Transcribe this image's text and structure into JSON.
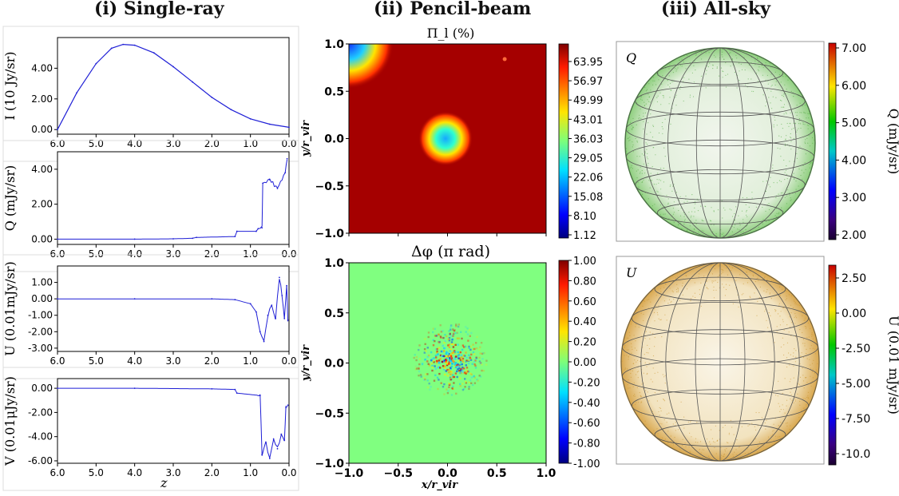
{
  "columns": {
    "single_ray": "(i) Single-ray",
    "pencil_beam": "(ii) Pencil-beam",
    "all_sky": "(iii) All-sky"
  },
  "colors": {
    "line": "#1f1fd6",
    "bg": "#ffffff",
    "axis": "#000000"
  },
  "chart_data": [
    {
      "type": "line",
      "panel": "single-ray-I",
      "ylabel": "I (10 Jy/sr)",
      "xlabel": "",
      "xlim": [
        6.0,
        0.0
      ],
      "ylim": [
        -0.3,
        6.0
      ],
      "xticks": [
        "6.0",
        "5.0",
        "4.0",
        "3.0",
        "2.0",
        "1.0",
        "0.0"
      ],
      "yticks": [
        "0.00",
        "2.00",
        "4.00"
      ],
      "x": [
        6.0,
        5.5,
        5.0,
        4.6,
        4.3,
        4.0,
        3.5,
        3.0,
        2.5,
        2.0,
        1.5,
        1.0,
        0.5,
        0.0
      ],
      "y": [
        0.0,
        2.4,
        4.3,
        5.3,
        5.55,
        5.5,
        5.0,
        4.1,
        3.1,
        2.1,
        1.3,
        0.7,
        0.35,
        0.15
      ]
    },
    {
      "type": "line",
      "panel": "single-ray-Q",
      "ylabel": "Q (mJy/sr)",
      "xlabel": "",
      "xlim": [
        6.0,
        0.0
      ],
      "ylim": [
        -0.3,
        5.0
      ],
      "xticks": [
        "6.0",
        "5.0",
        "4.0",
        "3.0",
        "2.0",
        "1.0",
        "0.0"
      ],
      "yticks": [
        "0.00",
        "2.00",
        "4.00"
      ],
      "x": [
        6.0,
        4.0,
        3.0,
        2.5,
        2.4,
        1.4,
        1.35,
        0.85,
        0.8,
        0.7,
        0.68,
        0.5,
        0.3,
        0.1,
        0.05
      ],
      "y": [
        0.0,
        0.0,
        0.02,
        0.05,
        0.1,
        0.15,
        0.45,
        0.45,
        0.6,
        0.65,
        3.2,
        3.4,
        2.9,
        3.8,
        4.6
      ]
    },
    {
      "type": "line",
      "panel": "single-ray-U",
      "ylabel": "U (0.01mJy/sr)",
      "xlabel": "",
      "xlim": [
        6.0,
        0.0
      ],
      "ylim": [
        -3.2,
        2.0
      ],
      "xticks": [
        "6.0",
        "5.0",
        "4.0",
        "3.0",
        "2.0",
        "1.0",
        "0.0"
      ],
      "yticks": [
        "1.00",
        "0.00",
        "-1.00",
        "-2.00",
        "-3.00"
      ],
      "x": [
        6.0,
        4.0,
        2.0,
        1.4,
        1.0,
        0.85,
        0.75,
        0.65,
        0.55,
        0.45,
        0.35,
        0.25,
        0.18,
        0.12,
        0.06,
        0.03
      ],
      "y": [
        0.0,
        0.0,
        0.0,
        -0.05,
        -0.3,
        -0.8,
        -2.0,
        -2.6,
        -1.0,
        -0.4,
        -1.2,
        1.3,
        0.2,
        -1.2,
        0.8,
        -1.3
      ]
    },
    {
      "type": "line",
      "panel": "single-ray-V",
      "ylabel": "V (0.01μJy/sr)",
      "xlabel": "z",
      "xlim": [
        6.0,
        0.0
      ],
      "ylim": [
        -6.2,
        0.8
      ],
      "xticks": [
        "6.0",
        "5.0",
        "4.0",
        "3.0",
        "2.0",
        "1.0",
        "0.0"
      ],
      "yticks": [
        "0.00",
        "-2.00",
        "-4.00",
        "-6.00"
      ],
      "x": [
        6.0,
        4.0,
        2.0,
        1.4,
        1.35,
        0.75,
        0.7,
        0.6,
        0.5,
        0.4,
        0.3,
        0.2,
        0.12,
        0.08,
        0.03
      ],
      "y": [
        0.0,
        0.0,
        -0.05,
        -0.1,
        -0.4,
        -0.6,
        -5.5,
        -4.5,
        -5.8,
        -4.2,
        -5.0,
        -3.8,
        -4.3,
        -1.6,
        -1.4
      ]
    },
    {
      "type": "heatmap",
      "panel": "pencil-polarization-fraction",
      "title": "Π_l (%)",
      "ylabel": "y/r_vir",
      "xlabel": "",
      "xlim": [
        -1.0,
        1.0
      ],
      "ylim": [
        -1.0,
        1.0
      ],
      "yticks": [
        "1.0",
        "0.5",
        "0.0",
        "−0.5",
        "−1.0"
      ],
      "colorbar_ticks": [
        "63.95",
        "56.97",
        "49.99",
        "43.01",
        "36.03",
        "29.05",
        "22.06",
        "15.08",
        "8.10",
        "1.12"
      ]
    },
    {
      "type": "heatmap",
      "panel": "pencil-angle-change",
      "title": "Δφ (π rad)",
      "ylabel": "y/r_vir",
      "xlabel": "x/r_vir",
      "xlim": [
        -1.0,
        1.0
      ],
      "ylim": [
        -1.0,
        1.0
      ],
      "xticks": [
        "−1.0",
        "−0.5",
        "0.0",
        "0.5",
        "1.0"
      ],
      "yticks": [
        "1.0",
        "0.5",
        "0.0",
        "−0.5",
        "−1.0"
      ],
      "colorbar_ticks": [
        "1.00",
        "0.80",
        "0.60",
        "0.40",
        "0.20",
        "0.00",
        "-0.20",
        "-0.40",
        "-0.60",
        "-0.80",
        "-1.00"
      ]
    },
    {
      "type": "heatmap",
      "panel": "all-sky-Q",
      "label": "Q",
      "colorbar_label": "Q (mJy/sr)",
      "colorbar_ticks": [
        "7.00",
        "6.00",
        "5.00",
        "4.00",
        "3.00",
        "2.00"
      ]
    },
    {
      "type": "heatmap",
      "panel": "all-sky-U",
      "label": "U",
      "colorbar_label": "U (0.01 mJy/sr)",
      "colorbar_ticks": [
        "2.50",
        "0.00",
        "-2.50",
        "-5.00",
        "-7.50",
        "-10.0"
      ]
    }
  ]
}
